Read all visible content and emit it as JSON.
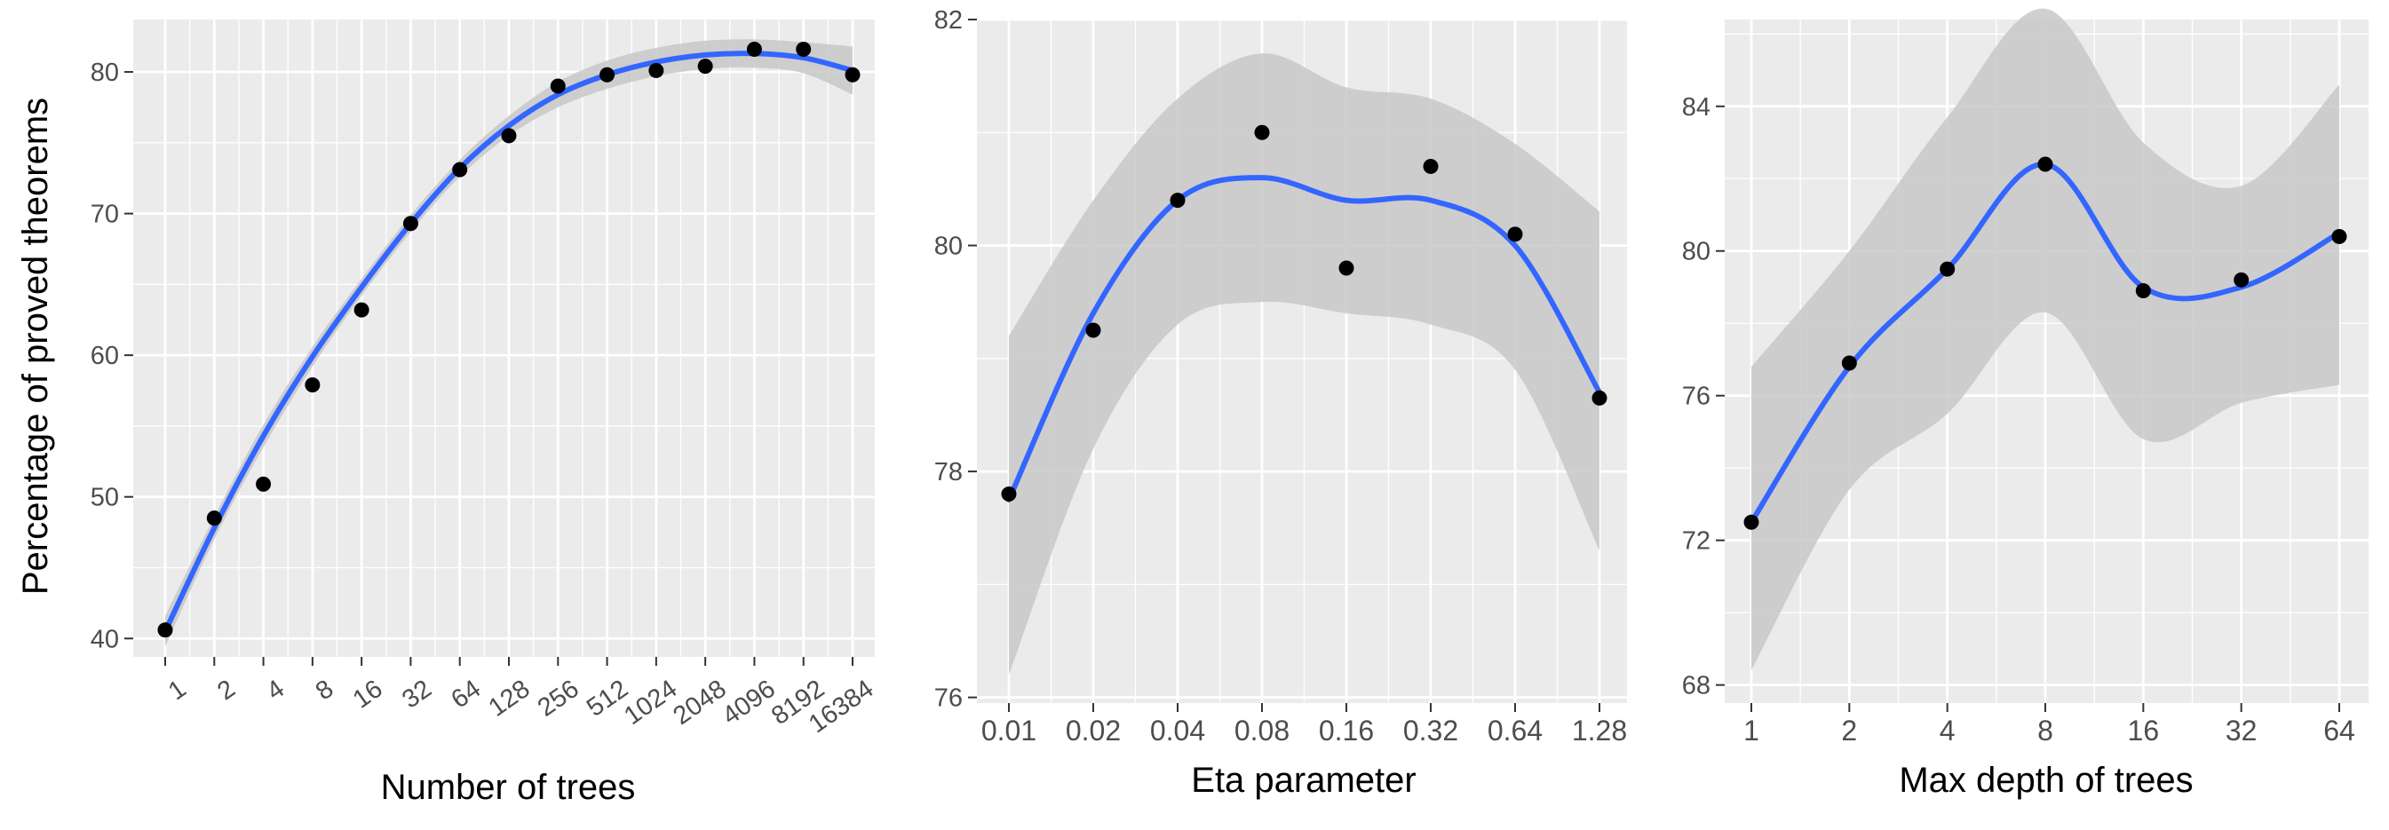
{
  "chart_data": [
    {
      "type": "scatter",
      "xlabel": "Number of trees",
      "ylabel": "Percentage of proved theorems",
      "x_tick_labels": [
        "1",
        "2",
        "4",
        "8",
        "16",
        "32",
        "64",
        "128",
        "256",
        "512",
        "1024",
        "2048",
        "4096",
        "8192",
        "16384"
      ],
      "y_ticks": [
        40,
        50,
        60,
        70,
        80
      ],
      "y_tick_labels": [
        "40",
        "50",
        "60",
        "70",
        "80"
      ],
      "ylim": [
        38.7,
        83.7
      ],
      "points": [
        40.6,
        48.5,
        50.9,
        57.9,
        63.2,
        69.3,
        73.1,
        75.5,
        79.0,
        79.8,
        80.1,
        80.4,
        81.6,
        81.6,
        79.8
      ],
      "smooth": {
        "fit": [
          40.5,
          47.8,
          54.3,
          59.9,
          64.8,
          69.3,
          73.2,
          76.2,
          78.4,
          79.8,
          80.7,
          81.2,
          81.3,
          81.0,
          80.1
        ],
        "lower": [
          39.4,
          47.0,
          53.5,
          59.2,
          64.2,
          68.7,
          72.6,
          75.5,
          77.5,
          78.8,
          79.7,
          80.2,
          80.3,
          79.9,
          78.4
        ],
        "upper": [
          41.6,
          48.6,
          55.1,
          60.6,
          65.4,
          69.9,
          73.8,
          76.9,
          79.3,
          80.8,
          81.7,
          82.2,
          82.3,
          82.1,
          81.8
        ]
      }
    },
    {
      "type": "scatter",
      "xlabel": "Eta parameter",
      "x_tick_labels": [
        "0.01",
        "0.02",
        "0.04",
        "0.08",
        "0.16",
        "0.32",
        "0.64",
        "1.28"
      ],
      "y_ticks": [
        76,
        78,
        80,
        82
      ],
      "y_tick_labels": [
        "76",
        "78",
        "80",
        "82"
      ],
      "ylim": [
        75.95,
        82.0
      ],
      "points": [
        77.8,
        79.25,
        80.4,
        81.0,
        79.8,
        80.7,
        80.1,
        78.65
      ],
      "smooth": {
        "fit": [
          77.75,
          79.4,
          80.4,
          80.6,
          80.4,
          80.4,
          80.0,
          78.7
        ],
        "lower": [
          76.2,
          78.2,
          79.3,
          79.5,
          79.4,
          79.3,
          78.9,
          77.3
        ],
        "upper": [
          79.2,
          80.4,
          81.3,
          81.7,
          81.4,
          81.3,
          80.9,
          80.3
        ]
      }
    },
    {
      "type": "scatter",
      "xlabel": "Max depth of trees",
      "x_tick_labels": [
        "1",
        "2",
        "4",
        "8",
        "16",
        "32",
        "64"
      ],
      "y_ticks": [
        68,
        72,
        76,
        80,
        84
      ],
      "y_tick_labels": [
        "68",
        "72",
        "76",
        "80",
        "84"
      ],
      "ylim": [
        67.5,
        86.4
      ],
      "points": [
        72.5,
        76.9,
        79.5,
        82.4,
        78.9,
        79.2,
        80.4
      ],
      "smooth": {
        "fit": [
          72.5,
          76.8,
          79.5,
          82.4,
          79.0,
          79.0,
          80.5
        ],
        "lower": [
          68.4,
          73.4,
          75.5,
          78.3,
          74.8,
          75.8,
          76.3
        ],
        "upper": [
          76.8,
          80.0,
          83.7,
          86.7,
          83.0,
          81.8,
          84.6
        ]
      }
    }
  ],
  "colors": {
    "panel_background": "#ebebeb",
    "grid": "#ffffff",
    "smooth_line": "#3366ff",
    "ribbon": "#c8c8c8",
    "points": "#000000",
    "axis_text": "#4d4d4d",
    "axis_title": "#000000"
  }
}
